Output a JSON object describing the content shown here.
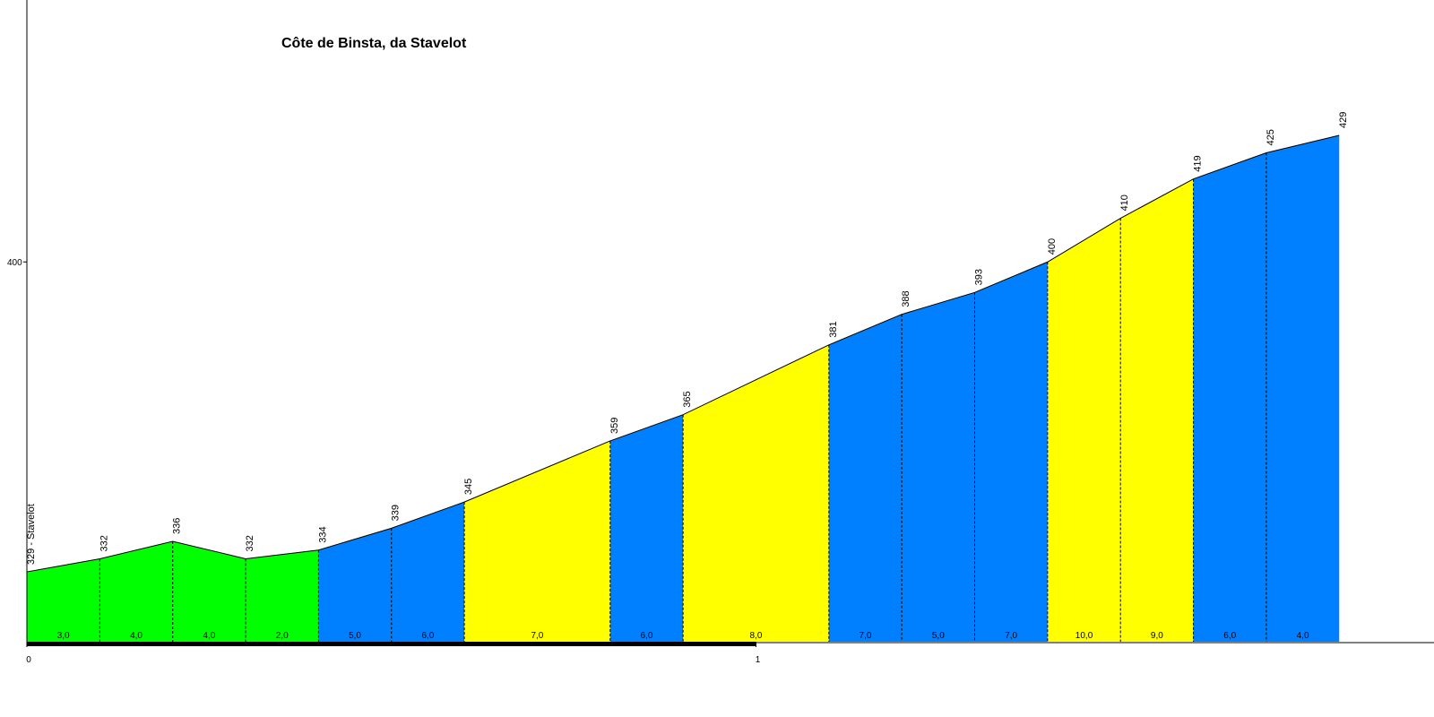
{
  "chart_data": {
    "type": "area",
    "title": "Côte de Binsta, da Stavelot",
    "x": [
      0,
      0.1,
      0.2,
      0.3,
      0.4,
      0.5,
      0.6,
      0.8,
      0.9,
      1.1,
      1.2,
      1.3,
      1.4,
      1.5,
      1.6,
      1.7,
      1.8
    ],
    "values": [
      329,
      332,
      336,
      332,
      334,
      339,
      345,
      359,
      365,
      381,
      388,
      393,
      400,
      410,
      419,
      425,
      429
    ],
    "value_labels": [
      "329 - Stavelot",
      "332",
      "336",
      "332",
      "334",
      "339",
      "345",
      "359",
      "365",
      "381",
      "388",
      "393",
      "400",
      "410",
      "419",
      "425",
      "429"
    ],
    "segments": {
      "values": [
        3.0,
        4.0,
        4.0,
        2.0,
        5.0,
        6.0,
        7.0,
        6.0,
        8.0,
        7.0,
        5.0,
        7.0,
        10.0,
        9.0,
        6.0,
        4.0
      ],
      "value_labels": [
        "3,0",
        "4,0",
        "4,0",
        "2,0",
        "5,0",
        "6,0",
        "7,0",
        "6,0",
        "8,0",
        "7,0",
        "5,0",
        "7,0",
        "10,0",
        "9,0",
        "6,0",
        "4,0"
      ],
      "colors": [
        "#00ff00",
        "#00ff00",
        "#00ff00",
        "#00ff00",
        "#0080ff",
        "#0080ff",
        "#ffff00",
        "#0080ff",
        "#ffff00",
        "#0080ff",
        "#0080ff",
        "#0080ff",
        "#ffff00",
        "#ffff00",
        "#0080ff",
        "#0080ff"
      ]
    },
    "xlim": [
      0,
      1.93
    ],
    "xticks": [
      0,
      1
    ],
    "ylim": [
      313,
      460
    ],
    "yticks": [
      400
    ]
  }
}
